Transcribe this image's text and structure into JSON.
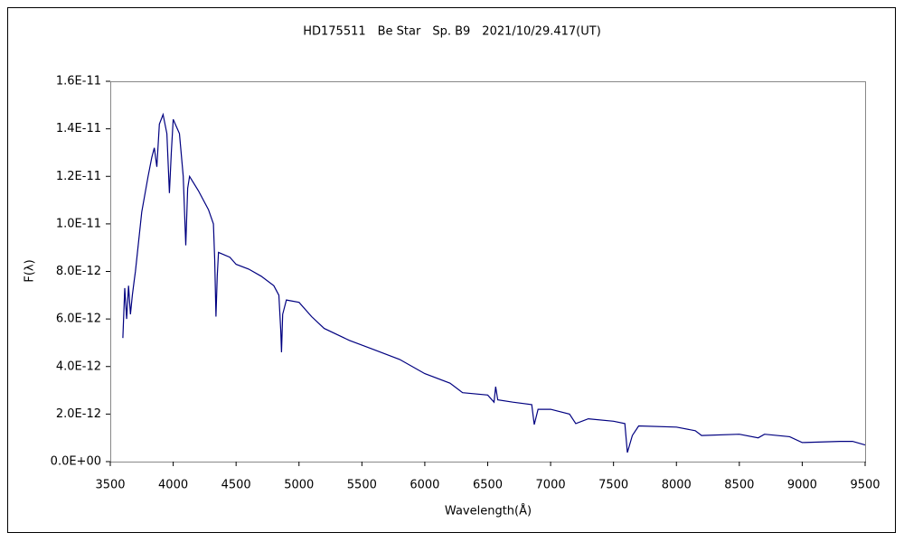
{
  "chart_data": {
    "type": "line",
    "title": "HD175511　Be Star　Sp. B9　2021/10/29.417(UT)",
    "x_label": "Wavelength(Å)",
    "y_label": "F(λ)",
    "x": [
      3600,
      3615,
      3630,
      3645,
      3660,
      3675,
      3690,
      3700,
      3750,
      3800,
      3830,
      3850,
      3870,
      3890,
      3920,
      3950,
      3970,
      3985,
      4000,
      4050,
      4080,
      4100,
      4115,
      4130,
      4200,
      4280,
      4320,
      4330,
      4340,
      4350,
      4360,
      4450,
      4500,
      4600,
      4700,
      4800,
      4840,
      4855,
      4861,
      4870,
      4900,
      5000,
      5100,
      5200,
      5400,
      5600,
      5800,
      6000,
      6200,
      6300,
      6500,
      6550,
      6563,
      6580,
      6700,
      6850,
      6870,
      6900,
      7000,
      7150,
      7200,
      7300,
      7500,
      7590,
      7610,
      7650,
      7700,
      8000,
      8150,
      8200,
      8500,
      8650,
      8700,
      8900,
      9000,
      9300,
      9400,
      9500
    ],
    "series": [
      {
        "name": "F(λ)",
        "color": "#000080",
        "values": [
          5.2e-12,
          7.3e-12,
          6e-12,
          7.4e-12,
          6.2e-12,
          7e-12,
          7.6e-12,
          8e-12,
          1.05e-11,
          1.2e-11,
          1.28e-11,
          1.32e-11,
          1.24e-11,
          1.42e-11,
          1.46e-11,
          1.38e-11,
          1.13e-11,
          1.3e-11,
          1.44e-11,
          1.38e-11,
          1.2e-11,
          9.1e-12,
          1.15e-11,
          1.2e-11,
          1.14e-11,
          1.06e-11,
          1e-11,
          8.5e-12,
          6.1e-12,
          7.8e-12,
          8.8e-12,
          8.6e-12,
          8.3e-12,
          8.1e-12,
          7.8e-12,
          7.4e-12,
          7e-12,
          5.5e-12,
          4.6e-12,
          6.2e-12,
          6.8e-12,
          6.7e-12,
          6.1e-12,
          5.6e-12,
          5.1e-12,
          4.7e-12,
          4.3e-12,
          3.7e-12,
          3.3e-12,
          2.9e-12,
          2.8e-12,
          2.5e-12,
          3.15e-12,
          2.6e-12,
          2.5e-12,
          2.4e-12,
          1.56e-12,
          2.2e-12,
          2.2e-12,
          2e-12,
          1.6e-12,
          1.8e-12,
          1.7e-12,
          1.6e-12,
          3.8e-13,
          1.1e-12,
          1.5e-12,
          1.45e-12,
          1.3e-12,
          1.1e-12,
          1.15e-12,
          1e-12,
          1.15e-12,
          1.05e-12,
          8e-13,
          8.5e-13,
          8.5e-13,
          7e-13
        ]
      }
    ],
    "xlim": [
      3500,
      9500
    ],
    "xticks": [
      3500,
      4000,
      4500,
      5000,
      5500,
      6000,
      6500,
      7000,
      7500,
      8000,
      8500,
      9000,
      9500
    ],
    "ylim": [
      0,
      1.6e-11
    ],
    "yticks": [
      {
        "value": 0,
        "label": "0.0E+00"
      },
      {
        "value": 2e-12,
        "label": "2.0E-12"
      },
      {
        "value": 4e-12,
        "label": "4.0E-12"
      },
      {
        "value": 6e-12,
        "label": "6.0E-12"
      },
      {
        "value": 8e-12,
        "label": "8.0E-12"
      },
      {
        "value": 1e-11,
        "label": "1.0E-11"
      },
      {
        "value": 1.2e-11,
        "label": "1.2E-11"
      },
      {
        "value": 1.4e-11,
        "label": "1.4E-11"
      },
      {
        "value": 1.6e-11,
        "label": "1.6E-11"
      }
    ]
  }
}
